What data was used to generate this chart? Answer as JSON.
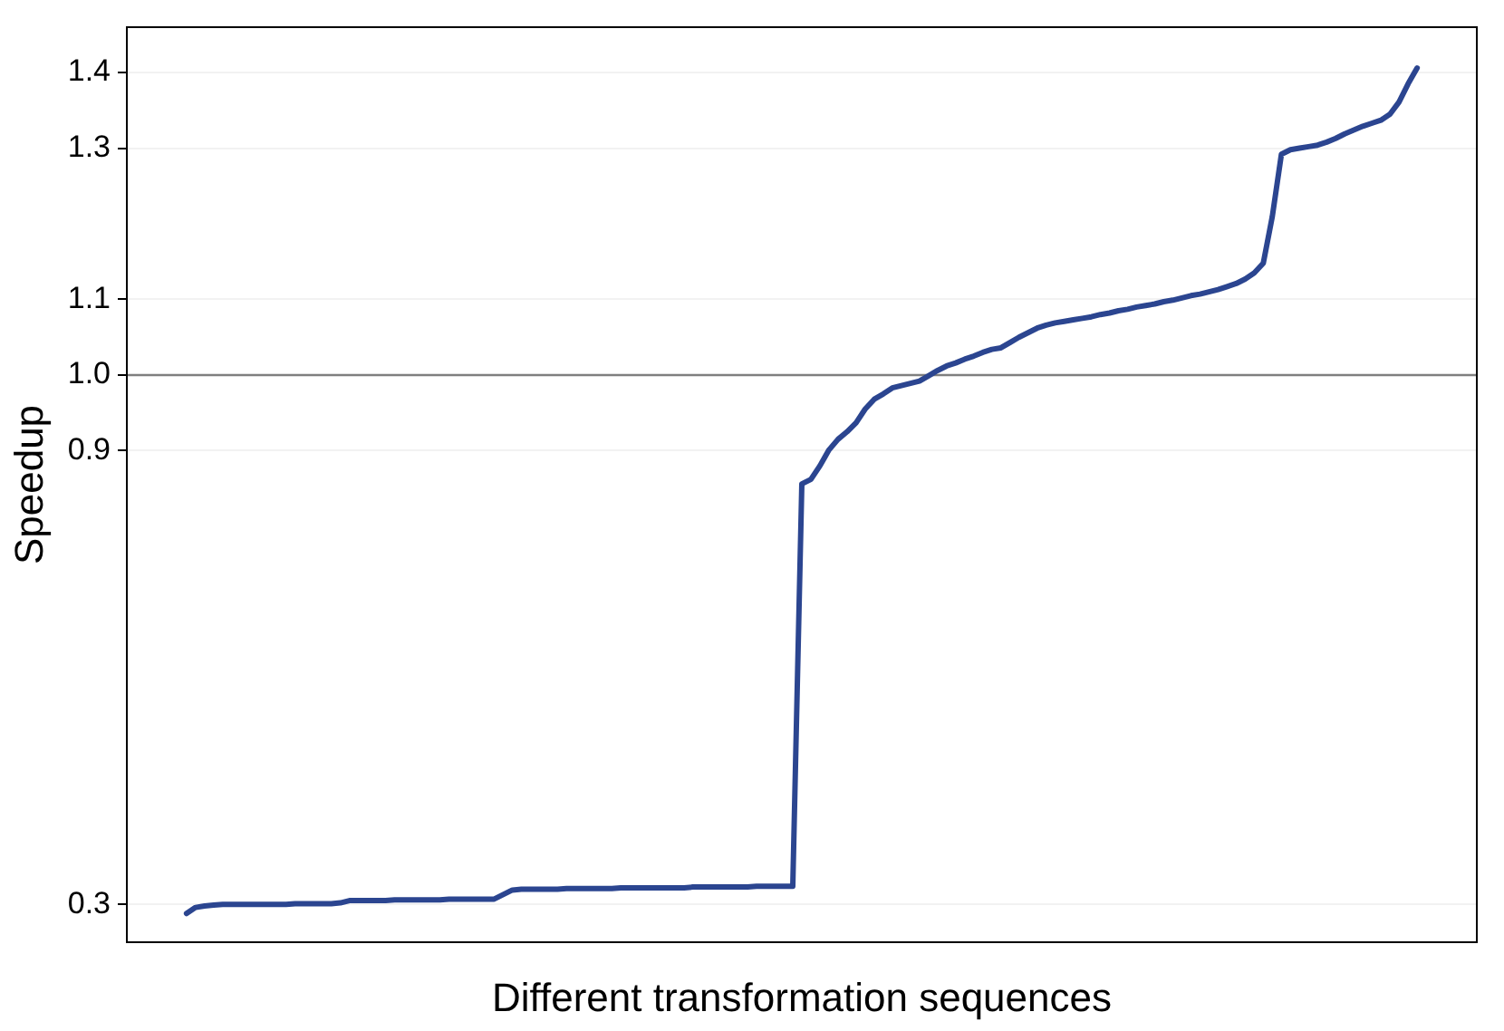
{
  "chart_data": {
    "type": "line",
    "xlabel": "Different transformation sequences",
    "ylabel": "Speedup",
    "categories": [
      null,
      null,
      null,
      null,
      null,
      null,
      null,
      null,
      null,
      null,
      null,
      null,
      null,
      null,
      null,
      null,
      null,
      null,
      null,
      null,
      null,
      null,
      null,
      null,
      null,
      null,
      null,
      null,
      null,
      null,
      null,
      null,
      null,
      null,
      null,
      null,
      null,
      null,
      null,
      null,
      null,
      null,
      null,
      null,
      null,
      null,
      null,
      null,
      null,
      null,
      null,
      null,
      null,
      null,
      null,
      null,
      null,
      null,
      null,
      null,
      null,
      null,
      null,
      null,
      null,
      null,
      null,
      null,
      null,
      null,
      null,
      null,
      null,
      null,
      null,
      null,
      null,
      null,
      null,
      null,
      null,
      null,
      null,
      null,
      null,
      null,
      null,
      null,
      null,
      null,
      null,
      null,
      null,
      null,
      null,
      null,
      null,
      null,
      null,
      null,
      null,
      null,
      null,
      null,
      null,
      null,
      null,
      null,
      null,
      null,
      null,
      null,
      null,
      null,
      null,
      null,
      null,
      null,
      null,
      null,
      null,
      null,
      null,
      null,
      null,
      null,
      null,
      null,
      null,
      null,
      null,
      null,
      null,
      null,
      null,
      null,
      null
    ],
    "series": [
      {
        "color": "#2b4590",
        "values": [
          0.288,
          0.296,
          0.298,
          0.299,
          0.3,
          0.3,
          0.3,
          0.3,
          0.3,
          0.3,
          0.3,
          0.3,
          0.301,
          0.301,
          0.301,
          0.301,
          0.301,
          0.302,
          0.305,
          0.305,
          0.305,
          0.305,
          0.305,
          0.306,
          0.306,
          0.306,
          0.306,
          0.306,
          0.306,
          0.307,
          0.307,
          0.307,
          0.307,
          0.307,
          0.307,
          0.313,
          0.319,
          0.32,
          0.32,
          0.32,
          0.32,
          0.32,
          0.321,
          0.321,
          0.321,
          0.321,
          0.321,
          0.321,
          0.322,
          0.322,
          0.322,
          0.322,
          0.322,
          0.322,
          0.322,
          0.322,
          0.323,
          0.323,
          0.323,
          0.323,
          0.323,
          0.323,
          0.323,
          0.324,
          0.324,
          0.324,
          0.324,
          0.324,
          0.856,
          0.862,
          0.88,
          0.901,
          0.915,
          0.925,
          0.937,
          0.955,
          0.968,
          0.975,
          0.983,
          0.986,
          0.989,
          0.992,
          0.999,
          1.006,
          1.012,
          1.016,
          1.021,
          1.025,
          1.03,
          1.034,
          1.036,
          1.043,
          1.05,
          1.056,
          1.062,
          1.066,
          1.069,
          1.071,
          1.073,
          1.075,
          1.077,
          1.08,
          1.082,
          1.085,
          1.087,
          1.09,
          1.092,
          1.094,
          1.097,
          1.099,
          1.102,
          1.105,
          1.107,
          1.11,
          1.113,
          1.117,
          1.121,
          1.127,
          1.135,
          1.148,
          1.21,
          1.292,
          1.298,
          1.3,
          1.302,
          1.304,
          1.308,
          1.313,
          1.319,
          1.324,
          1.329,
          1.333,
          1.337,
          1.345,
          1.361,
          1.385,
          1.406
        ]
      }
    ],
    "ylim": [
      0.25,
      1.46
    ],
    "yticks": [
      0.3,
      0.9,
      {
        "value": 1.0,
        "label": "1.0"
      },
      1.1,
      1.3,
      1.4
    ],
    "ref_lines": [
      {
        "axis": "y",
        "value": 1.0,
        "color": "#7f7f7f"
      }
    ],
    "grid": "y",
    "legend": false,
    "marker": "none",
    "line_style": "solid"
  }
}
